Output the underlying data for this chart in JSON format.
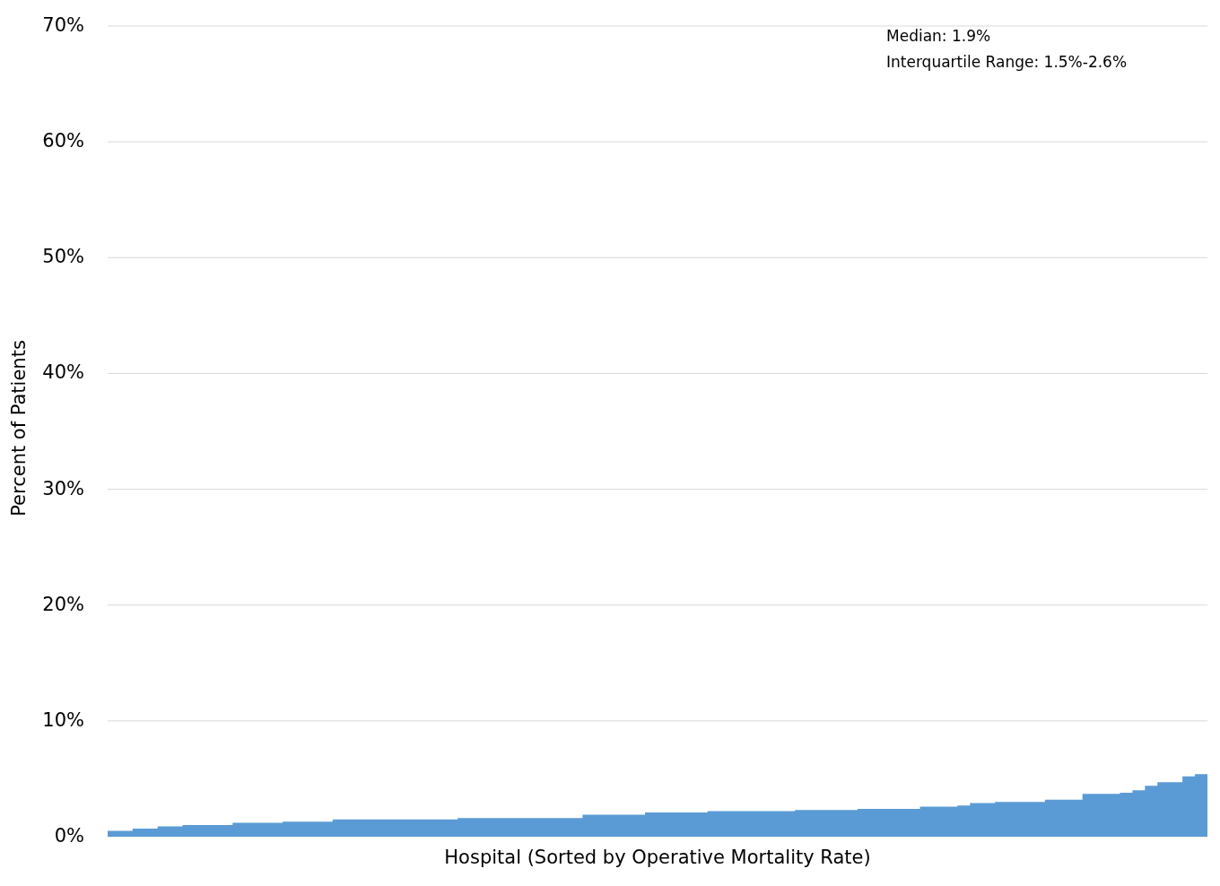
{
  "chart_data": {
    "type": "area",
    "xlabel": "Hospital (Sorted by Operative Mortality Rate)",
    "ylabel": "Percent of Patients",
    "annotations": [
      "Median: 1.9%",
      "Interquartile Range: 1.5%-2.6%"
    ],
    "categories": [
      null,
      null,
      null,
      null,
      null,
      null,
      null,
      null,
      null,
      null,
      null,
      null,
      null,
      null,
      null,
      null,
      null,
      null,
      null,
      null,
      null,
      null,
      null,
      null,
      null,
      null,
      null,
      null,
      null,
      null,
      null,
      null,
      null,
      null,
      null,
      null,
      null,
      null,
      null,
      null,
      null,
      null,
      null,
      null,
      null,
      null,
      null,
      null,
      null,
      null,
      null,
      null,
      null,
      null,
      null,
      null,
      null,
      null,
      null,
      null,
      null,
      null,
      null,
      null,
      null,
      null,
      null,
      null,
      null,
      null,
      null,
      null,
      null,
      null,
      null,
      null,
      null,
      null,
      null,
      null,
      null,
      null,
      null,
      null,
      null,
      null,
      null,
      null
    ],
    "values": [
      0.5,
      0.5,
      0.7,
      0.7,
      0.9,
      0.9,
      1.0,
      1.0,
      1.0,
      1.0,
      1.2,
      1.2,
      1.2,
      1.2,
      1.3,
      1.3,
      1.3,
      1.3,
      1.5,
      1.5,
      1.5,
      1.5,
      1.5,
      1.5,
      1.5,
      1.5,
      1.5,
      1.5,
      1.6,
      1.6,
      1.6,
      1.6,
      1.6,
      1.6,
      1.6,
      1.6,
      1.6,
      1.6,
      1.9,
      1.9,
      1.9,
      1.9,
      1.9,
      2.1,
      2.1,
      2.1,
      2.1,
      2.1,
      2.2,
      2.2,
      2.2,
      2.2,
      2.2,
      2.2,
      2.2,
      2.3,
      2.3,
      2.3,
      2.3,
      2.3,
      2.4,
      2.4,
      2.4,
      2.4,
      2.4,
      2.6,
      2.6,
      2.6,
      2.7,
      2.9,
      2.9,
      3.0,
      3.0,
      3.0,
      3.0,
      3.2,
      3.2,
      3.2,
      3.7,
      3.7,
      3.7,
      3.8,
      4.0,
      4.4,
      4.7,
      4.7,
      5.2,
      5.4
    ],
    "color": "#5b9bd5",
    "ylim": [
      0,
      70
    ],
    "yticks": [
      {
        "value": 0,
        "label": "0%"
      },
      {
        "value": 10,
        "label": "10%"
      },
      {
        "value": 20,
        "label": "20%"
      },
      {
        "value": 30,
        "label": "30%"
      },
      {
        "value": 40,
        "label": "40%"
      },
      {
        "value": 50,
        "label": "50%"
      },
      {
        "value": 60,
        "label": "60%"
      },
      {
        "value": 70,
        "label": "70%"
      }
    ],
    "grid": "y",
    "tick_labels": "y"
  }
}
